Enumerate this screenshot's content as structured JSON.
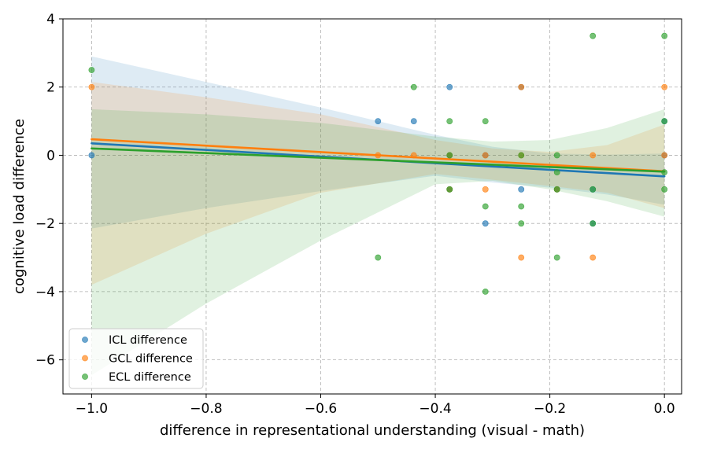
{
  "chart_data": {
    "type": "scatter",
    "xlabel": "difference in representational understanding (visual - math)",
    "ylabel": "cognitive load difference",
    "xlim": [
      -1.05,
      0.03
    ],
    "ylim": [
      -7.0,
      4.0
    ],
    "xticks": [
      -1.0,
      -0.8,
      -0.6,
      -0.4,
      -0.2,
      0.0
    ],
    "xtick_labels": [
      "−1.0",
      "−0.8",
      "−0.6",
      "−0.4",
      "−0.2",
      "0.0"
    ],
    "yticks": [
      -6,
      -4,
      -2,
      0,
      2,
      4
    ],
    "ytick_labels": [
      "−6",
      "−4",
      "−2",
      "0",
      "2",
      "4"
    ],
    "grid": true,
    "legend_position": "lower-left",
    "series": [
      {
        "name": "ICL difference",
        "color": "#1f77b4",
        "points": [
          [
            -1.0,
            0
          ],
          [
            -0.5,
            1
          ],
          [
            -0.4375,
            1
          ],
          [
            -0.375,
            2
          ],
          [
            -0.375,
            0
          ],
          [
            -0.375,
            -1
          ],
          [
            -0.3125,
            0
          ],
          [
            -0.3125,
            -2
          ],
          [
            -0.25,
            2
          ],
          [
            -0.25,
            -1
          ],
          [
            -0.1875,
            -1
          ],
          [
            -0.125,
            -1
          ],
          [
            -0.125,
            -2
          ],
          [
            0.0,
            1
          ],
          [
            0.0,
            0
          ]
        ],
        "regression": [
          [
            -1.0,
            0.35
          ],
          [
            0.0,
            -0.62
          ]
        ],
        "ci_upper": [
          [
            -1.0,
            2.9
          ],
          [
            -0.8,
            2.15
          ],
          [
            -0.6,
            1.4
          ],
          [
            -0.4,
            0.6
          ],
          [
            -0.3,
            0.25
          ],
          [
            -0.2,
            0.05
          ],
          [
            -0.1,
            0.02
          ],
          [
            0.0,
            0.05
          ]
        ],
        "ci_lower": [
          [
            -1.0,
            -2.15
          ],
          [
            -0.8,
            -1.55
          ],
          [
            -0.6,
            -1.05
          ],
          [
            -0.4,
            -0.6
          ],
          [
            -0.3,
            -0.8
          ],
          [
            -0.2,
            -0.95
          ],
          [
            -0.1,
            -1.15
          ],
          [
            0.0,
            -1.45
          ]
        ]
      },
      {
        "name": "GCL difference",
        "color": "#ff7f0e",
        "points": [
          [
            -1.0,
            2
          ],
          [
            -0.5,
            0
          ],
          [
            -0.4375,
            0
          ],
          [
            -0.375,
            0
          ],
          [
            -0.375,
            -1
          ],
          [
            -0.3125,
            0
          ],
          [
            -0.3125,
            -1
          ],
          [
            -0.25,
            2
          ],
          [
            -0.25,
            0
          ],
          [
            -0.25,
            -3
          ],
          [
            -0.1875,
            -1
          ],
          [
            -0.125,
            0
          ],
          [
            -0.125,
            -3
          ],
          [
            0.0,
            2
          ],
          [
            0.0,
            0
          ]
        ],
        "regression": [
          [
            -1.0,
            0.47
          ],
          [
            0.0,
            -0.47
          ]
        ],
        "ci_upper": [
          [
            -1.0,
            2.15
          ],
          [
            -0.8,
            1.7
          ],
          [
            -0.6,
            1.2
          ],
          [
            -0.4,
            0.45
          ],
          [
            -0.3,
            0.2
          ],
          [
            -0.2,
            0.1
          ],
          [
            -0.1,
            0.3
          ],
          [
            0.0,
            0.9
          ]
        ],
        "ci_lower": [
          [
            -1.0,
            -3.8
          ],
          [
            -0.8,
            -2.3
          ],
          [
            -0.6,
            -1.1
          ],
          [
            -0.4,
            -0.55
          ],
          [
            -0.3,
            -0.72
          ],
          [
            -0.2,
            -0.9
          ],
          [
            -0.1,
            -1.1
          ],
          [
            0.0,
            -1.55
          ]
        ]
      },
      {
        "name": "ECL difference",
        "color": "#2ca02c",
        "points": [
          [
            -1.0,
            2.5
          ],
          [
            -0.5,
            -3
          ],
          [
            -0.4375,
            2
          ],
          [
            -0.375,
            1
          ],
          [
            -0.375,
            0
          ],
          [
            -0.375,
            -1
          ],
          [
            -0.3125,
            1
          ],
          [
            -0.3125,
            -1.5
          ],
          [
            -0.3125,
            -4
          ],
          [
            -0.25,
            0
          ],
          [
            -0.25,
            -1.5
          ],
          [
            -0.25,
            -2
          ],
          [
            -0.1875,
            0
          ],
          [
            -0.1875,
            -0.5
          ],
          [
            -0.1875,
            -1
          ],
          [
            -0.1875,
            -3
          ],
          [
            -0.125,
            3.5
          ],
          [
            -0.125,
            -1
          ],
          [
            -0.125,
            -2
          ],
          [
            0.0,
            3.5
          ],
          [
            0.0,
            1
          ],
          [
            0.0,
            -0.5
          ],
          [
            0.0,
            -1
          ]
        ],
        "regression": [
          [
            -1.0,
            0.2
          ],
          [
            0.0,
            -0.48
          ]
        ],
        "ci_upper": [
          [
            -1.0,
            1.35
          ],
          [
            -0.8,
            1.2
          ],
          [
            -0.6,
            0.95
          ],
          [
            -0.4,
            0.55
          ],
          [
            -0.3,
            0.4
          ],
          [
            -0.2,
            0.45
          ],
          [
            -0.1,
            0.8
          ],
          [
            0.0,
            1.35
          ]
        ],
        "ci_lower": [
          [
            -1.0,
            -6.45
          ],
          [
            -0.8,
            -4.35
          ],
          [
            -0.6,
            -2.5
          ],
          [
            -0.4,
            -0.85
          ],
          [
            -0.3,
            -0.75
          ],
          [
            -0.2,
            -1.0
          ],
          [
            -0.1,
            -1.35
          ],
          [
            0.0,
            -1.8
          ]
        ]
      }
    ]
  }
}
